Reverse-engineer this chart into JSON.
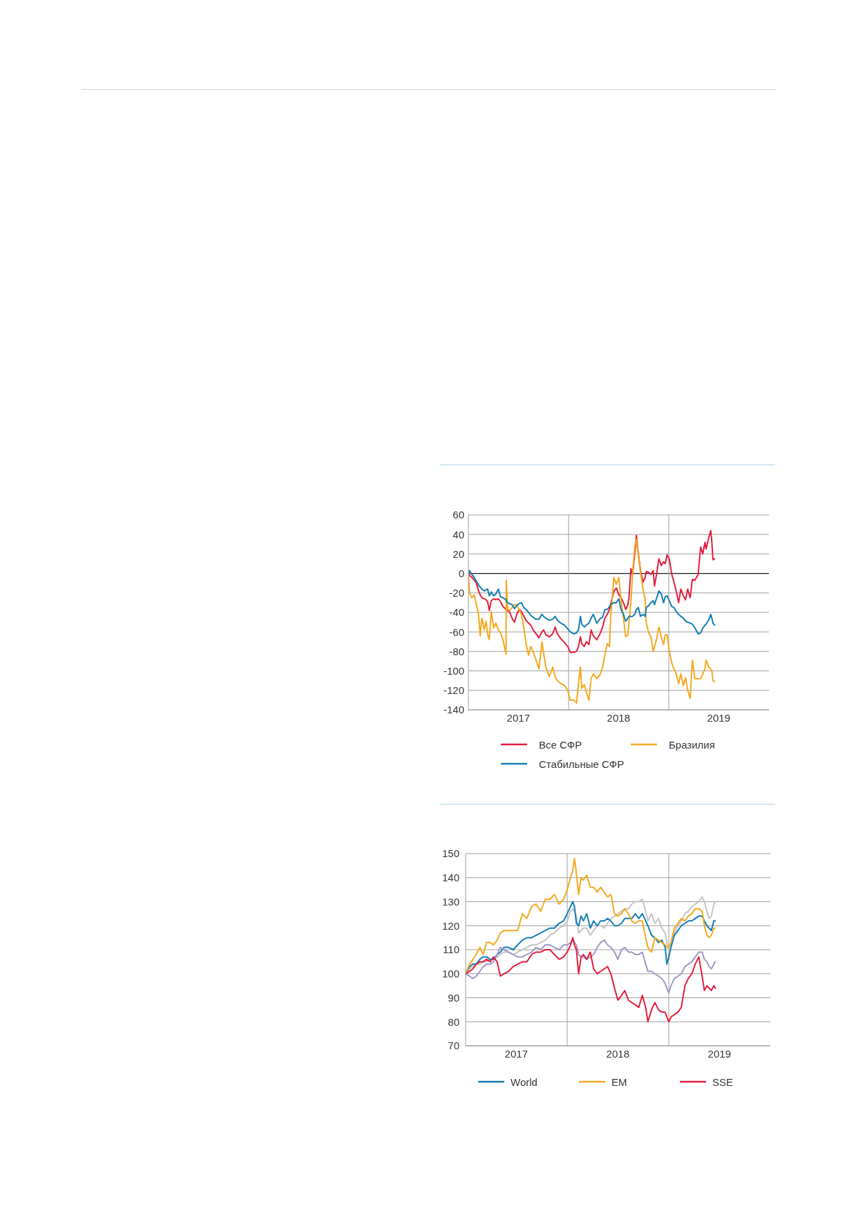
{
  "chart_data": [
    {
      "type": "line",
      "x": [
        "2017-01-01",
        "2017-01-05",
        "2017-01-13",
        "2017-01-22",
        "2017-01-30",
        "2017-02-07",
        "2017-02-13",
        "2017-02-19",
        "2017-02-28",
        "2017-03-06",
        "2017-03-12",
        "2017-03-18",
        "2017-03-25",
        "2017-04-03",
        "2017-04-11",
        "2017-04-20",
        "2017-04-28",
        "2017-05-07",
        "2017-05-18",
        "2017-05-19",
        "2017-05-24",
        "2017-06-01",
        "2017-06-09",
        "2017-06-18",
        "2017-06-26",
        "2017-07-05",
        "2017-07-13",
        "2017-07-22",
        "2017-07-30",
        "2017-08-08",
        "2017-08-16",
        "2017-08-25",
        "2017-09-02",
        "2017-09-15",
        "2017-09-26",
        "2017-10-02",
        "2017-10-10",
        "2017-10-23",
        "2017-11-04",
        "2017-11-13",
        "2017-11-21",
        "2017-12-04",
        "2017-12-17",
        "2017-12-29",
        "2018-01-07",
        "2018-01-20",
        "2018-01-30",
        "2018-02-06",
        "2018-02-13",
        "2018-02-18",
        "2018-02-27",
        "2018-03-07",
        "2018-03-16",
        "2018-03-24",
        "2018-04-01",
        "2018-04-14",
        "2018-04-27",
        "2018-05-05",
        "2018-05-13",
        "2018-05-22",
        "2018-05-30",
        "2018-06-03",
        "2018-06-15",
        "2018-06-24",
        "2018-07-03",
        "2018-07-11",
        "2018-07-20",
        "2018-07-28",
        "2018-08-05",
        "2018-08-09",
        "2018-08-16",
        "2018-08-22",
        "2018-08-30",
        "2018-09-05",
        "2018-09-12",
        "2018-09-20",
        "2018-09-29",
        "2018-10-07",
        "2018-10-11",
        "2018-10-20",
        "2018-10-28",
        "2018-11-05",
        "2018-11-10",
        "2018-11-18",
        "2018-11-26",
        "2018-12-05",
        "2018-12-13",
        "2018-12-19",
        "2018-12-26",
        "2019-01-03",
        "2019-01-12",
        "2019-01-20",
        "2019-01-28",
        "2019-02-06",
        "2019-02-14",
        "2019-02-23",
        "2019-03-03",
        "2019-03-11",
        "2019-03-20",
        "2019-03-28",
        "2019-04-06",
        "2019-04-18",
        "2019-04-27",
        "2019-05-05",
        "2019-05-13",
        "2019-05-17",
        "2019-05-26",
        "2019-06-03",
        "2019-06-07",
        "2019-06-11",
        "2019-06-17"
      ],
      "series": [
        {
          "name": "Все СФР",
          "color": "#e31d3c",
          "values": [
            2,
            -2,
            -4,
            -7,
            -10,
            -18,
            -22,
            -25,
            -26,
            -27,
            -29,
            -38,
            -28,
            -26,
            -27,
            -26,
            -29,
            -34,
            -37,
            -37,
            -38,
            -40,
            -46,
            -50,
            -42,
            -37,
            -39,
            -44,
            -48,
            -51,
            -53,
            -58,
            -61,
            -66,
            -60,
            -58,
            -63,
            -65,
            -62,
            -55,
            -62,
            -67,
            -71,
            -75,
            -81,
            -81,
            -80,
            -75,
            -65,
            -72,
            -75,
            -70,
            -73,
            -58,
            -64,
            -68,
            -61,
            -55,
            -46,
            -42,
            -37,
            -32,
            -18,
            -15,
            -22,
            -25,
            -30,
            -37,
            -32,
            -25,
            5,
            -1,
            20,
            39,
            20,
            3,
            -9,
            -4,
            2,
            1,
            -1,
            3,
            -13,
            0,
            15,
            8,
            12,
            10,
            19,
            15,
            -1,
            -9,
            -18,
            -30,
            -16,
            -23,
            -27,
            -16,
            -25,
            -6,
            -7,
            -1,
            27,
            20,
            32,
            25,
            36,
            44,
            32,
            14,
            15
          ]
        },
        {
          "name": "Бразилия",
          "color": "#f5a81c",
          "values": [
            0,
            -20,
            -25,
            -22,
            -32,
            -42,
            -64,
            -46,
            -58,
            -49,
            -62,
            -68,
            -39,
            -56,
            -51,
            -58,
            -61,
            -68,
            -83,
            -7,
            -37,
            -38,
            -35,
            -32,
            -32,
            -37,
            -42,
            -56,
            -72,
            -84,
            -75,
            -80,
            -87,
            -98,
            -70,
            -82,
            -96,
            -106,
            -96,
            -106,
            -110,
            -113,
            -115,
            -120,
            -130,
            -130,
            -133,
            -113,
            -96,
            -118,
            -114,
            -122,
            -130,
            -108,
            -103,
            -108,
            -103,
            -96,
            -84,
            -72,
            -75,
            -46,
            -4,
            -11,
            -4,
            -27,
            -46,
            -65,
            -63,
            -50,
            -30,
            -1,
            27,
            35,
            20,
            1,
            -16,
            -27,
            -51,
            -61,
            -65,
            -80,
            -75,
            -67,
            -55,
            -65,
            -73,
            -63,
            -63,
            -80,
            -92,
            -98,
            -103,
            -113,
            -103,
            -115,
            -107,
            -120,
            -128,
            -89,
            -108,
            -108,
            -108,
            -103,
            -98,
            -89,
            -96,
            -98,
            -100,
            -110,
            -111
          ]
        },
        {
          "name": "Стабильные СФР",
          "color": "#117db4",
          "values": [
            0,
            3,
            -1,
            -4,
            -8,
            -12,
            -14,
            -16,
            -18,
            -17,
            -16,
            -23,
            -19,
            -23,
            -21,
            -16,
            -24,
            -25,
            -27,
            -28,
            -30,
            -31,
            -32,
            -36,
            -33,
            -31,
            -30,
            -35,
            -37,
            -40,
            -43,
            -45,
            -47,
            -47,
            -42,
            -44,
            -46,
            -48,
            -47,
            -44,
            -48,
            -51,
            -53,
            -57,
            -60,
            -62,
            -61,
            -58,
            -44,
            -52,
            -55,
            -53,
            -51,
            -46,
            -42,
            -51,
            -46,
            -45,
            -37,
            -37,
            -34,
            -32,
            -30,
            -30,
            -26,
            -37,
            -42,
            -49,
            -46,
            -44,
            -44,
            -44,
            -42,
            -37,
            -35,
            -44,
            -42,
            -44,
            -35,
            -33,
            -30,
            -28,
            -32,
            -25,
            -18,
            -21,
            -30,
            -24,
            -23,
            -28,
            -34,
            -35,
            -39,
            -42,
            -44,
            -46,
            -49,
            -50,
            -51,
            -52,
            -56,
            -62,
            -61,
            -56,
            -53,
            -52,
            -48,
            -42,
            -46,
            -51,
            -53
          ]
        }
      ],
      "xlim": [
        "2017-01-01",
        "2020-01-01"
      ],
      "xticks": [
        {
          "value": "2017-07-02",
          "label": "2017"
        },
        {
          "value": "2018-07-02",
          "label": "2018"
        },
        {
          "value": "2019-07-02",
          "label": "2019"
        }
      ],
      "ylim": [
        -140,
        60
      ],
      "yticks": [
        -140,
        -120,
        -100,
        -80,
        -60,
        -40,
        -20,
        0,
        20,
        40,
        60
      ],
      "grid": "y",
      "legend": "bottom",
      "ref_lines": [
        {
          "axis": "y",
          "value": 0,
          "color": "#1a1a1a"
        },
        {
          "axis": "x",
          "value": "2018-01-01",
          "color": "#9d9d9d"
        },
        {
          "axis": "x",
          "value": "2019-01-01",
          "color": "#9d9d9d"
        }
      ]
    },
    {
      "type": "line",
      "x": [
        "2017-01-01",
        "2017-01-15",
        "2017-01-27",
        "2017-02-08",
        "2017-02-21",
        "2017-03-05",
        "2017-03-17",
        "2017-03-30",
        "2017-04-11",
        "2017-04-24",
        "2017-05-06",
        "2017-05-19",
        "2017-06-04",
        "2017-06-21",
        "2017-07-07",
        "2017-07-24",
        "2017-08-09",
        "2017-08-26",
        "2017-09-11",
        "2017-09-28",
        "2017-10-14",
        "2017-10-31",
        "2017-11-16",
        "2017-12-03",
        "2017-12-19",
        "2018-01-01",
        "2018-01-13",
        "2018-01-21",
        "2018-01-27",
        "2018-02-03",
        "2018-02-11",
        "2018-02-20",
        "2018-02-28",
        "2018-03-12",
        "2018-03-25",
        "2018-04-06",
        "2018-04-19",
        "2018-05-01",
        "2018-05-14",
        "2018-05-26",
        "2018-06-07",
        "2018-06-20",
        "2018-07-02",
        "2018-07-15",
        "2018-07-27",
        "2018-08-09",
        "2018-08-21",
        "2018-09-03",
        "2018-09-15",
        "2018-09-28",
        "2018-10-10",
        "2018-10-18",
        "2018-10-31",
        "2018-11-12",
        "2018-11-25",
        "2018-12-07",
        "2018-12-19",
        "2018-12-25",
        "2019-01-01",
        "2019-01-09",
        "2019-01-21",
        "2019-02-03",
        "2019-02-15",
        "2019-02-28",
        "2019-03-12",
        "2019-03-25",
        "2019-04-06",
        "2019-04-19",
        "2019-05-01",
        "2019-05-09",
        "2019-05-18",
        "2019-05-26",
        "2019-06-03",
        "2019-06-12",
        "2019-06-17"
      ],
      "series": [
        {
          "color": "#c4c4c4",
          "values": [
            100,
            102,
            103,
            104,
            104,
            105,
            105,
            106,
            106,
            107,
            108,
            109,
            109,
            108,
            109,
            110,
            111,
            112,
            112,
            113,
            114,
            116,
            117,
            119,
            120,
            122,
            126,
            127,
            126,
            124,
            117,
            118,
            119,
            119,
            116,
            118,
            120,
            120,
            119,
            121,
            123,
            124,
            125,
            126,
            127,
            127,
            129,
            130,
            130,
            131,
            126,
            122,
            125,
            121,
            123,
            119,
            117,
            113,
            110,
            113,
            117,
            120,
            122,
            125,
            126,
            128,
            129,
            130,
            132,
            130,
            126,
            123,
            124,
            129,
            130
          ]
        },
        {
          "name": "World",
          "color": "#117db4",
          "values": [
            100,
            103,
            104,
            104,
            106,
            107,
            107,
            106,
            106,
            108,
            109,
            111,
            111,
            110,
            112,
            114,
            115,
            115,
            116,
            117,
            118,
            119,
            119,
            121,
            122,
            125,
            128,
            130,
            128,
            121,
            120,
            124,
            122,
            125,
            119,
            122,
            120,
            122,
            122,
            123,
            122,
            120,
            120,
            121,
            123,
            123,
            123,
            125,
            123,
            125,
            122,
            120,
            116,
            115,
            113,
            114,
            111,
            104,
            107,
            111,
            116,
            118,
            120,
            121,
            122,
            122,
            123,
            124,
            124,
            122,
            120,
            119,
            118,
            122,
            122
          ]
        },
        {
          "name": "EM",
          "color": "#f5a81c",
          "values": [
            100,
            104,
            106,
            108,
            111,
            108,
            113,
            113,
            112,
            114,
            117,
            118,
            118,
            118,
            118,
            125,
            123,
            128,
            129,
            126,
            131,
            131,
            133,
            129,
            131,
            135,
            140,
            143,
            148,
            142,
            133,
            140,
            139,
            141,
            136,
            136,
            134,
            136,
            134,
            132,
            133,
            125,
            124,
            125,
            127,
            125,
            122,
            121,
            122,
            122,
            115,
            111,
            109,
            115,
            114,
            113,
            112,
            111,
            111,
            113,
            119,
            121,
            123,
            122,
            124,
            125,
            127,
            127,
            126,
            120,
            116,
            115,
            116,
            119,
            119
          ]
        },
        {
          "color": "#a097c4",
          "values": [
            100,
            99,
            98,
            99,
            101,
            103,
            104,
            104,
            105,
            108,
            111,
            110,
            109,
            108,
            107,
            107,
            108,
            109,
            111,
            110,
            112,
            112,
            111,
            110,
            112,
            112,
            113,
            114,
            113,
            112,
            108,
            107,
            107,
            106,
            107,
            108,
            111,
            113,
            114,
            112,
            111,
            109,
            106,
            110,
            111,
            109,
            109,
            108,
            108,
            109,
            104,
            101,
            101,
            100,
            99,
            98,
            96,
            94,
            92,
            95,
            98,
            99,
            100,
            103,
            104,
            105,
            107,
            109,
            109,
            106,
            105,
            103,
            102,
            104,
            105
          ]
        },
        {
          "name": "SSE",
          "color": "#e31d3c",
          "values": [
            100,
            101,
            102,
            104,
            105,
            105,
            106,
            105,
            107,
            105,
            99,
            100,
            101,
            103,
            104,
            105,
            105,
            108,
            109,
            109,
            110,
            110,
            108,
            106,
            107,
            109,
            112,
            115,
            112,
            110,
            100,
            107,
            108,
            106,
            109,
            102,
            100,
            101,
            102,
            103,
            100,
            94,
            89,
            91,
            93,
            89,
            88,
            87,
            86,
            91,
            86,
            80,
            85,
            88,
            85,
            84,
            84,
            82,
            80,
            82,
            83,
            84,
            86,
            95,
            98,
            100,
            104,
            107,
            99,
            93,
            95,
            94,
            93,
            95,
            94
          ]
        }
      ],
      "xlim": [
        "2017-01-01",
        "2020-01-01"
      ],
      "xticks": [
        {
          "value": "2017-07-02",
          "label": "2017"
        },
        {
          "value": "2018-07-02",
          "label": "2018"
        },
        {
          "value": "2019-07-02",
          "label": "2019"
        }
      ],
      "ylim": [
        70,
        150
      ],
      "yticks": [
        70,
        80,
        90,
        100,
        110,
        120,
        130,
        140,
        150
      ],
      "grid": "y",
      "legend": "bottom",
      "ref_lines": [
        {
          "axis": "x",
          "value": "2018-01-01",
          "color": "#9d9d9d"
        },
        {
          "axis": "x",
          "value": "2019-01-01",
          "color": "#9d9d9d"
        }
      ]
    }
  ]
}
